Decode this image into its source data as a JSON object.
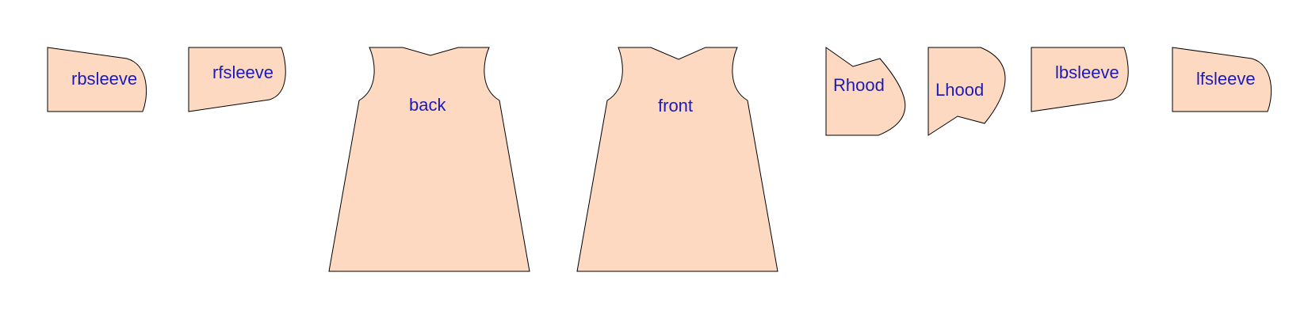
{
  "style": {
    "fill_color": "#fdd9c2",
    "outline_color": "#000000",
    "label_color": "#1c1cb4",
    "background": "#ffffff"
  },
  "pieces": [
    {
      "id": "rbsleeve",
      "label": "rbsleeve"
    },
    {
      "id": "rfsleeve",
      "label": "rfsleeve"
    },
    {
      "id": "back",
      "label": "back"
    },
    {
      "id": "front",
      "label": "front"
    },
    {
      "id": "rhood",
      "label": "Rhood"
    },
    {
      "id": "lhood",
      "label": "Lhood"
    },
    {
      "id": "lbsleeve",
      "label": "lbsleeve"
    },
    {
      "id": "lfsleeve",
      "label": "lfsleeve"
    }
  ]
}
